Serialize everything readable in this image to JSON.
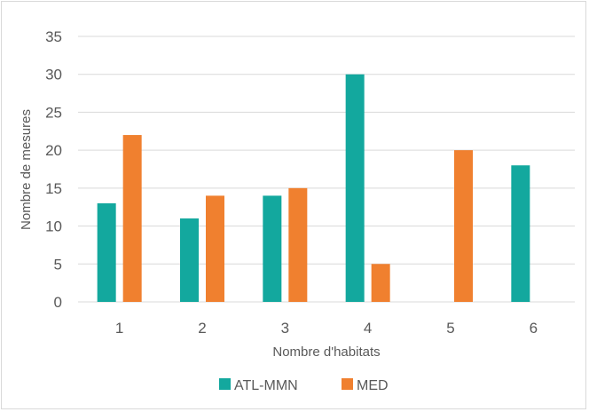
{
  "chart_data": {
    "type": "bar",
    "title": "",
    "xlabel": "Nombre d'habitats",
    "ylabel": "Nombre de mesures",
    "categories": [
      "1",
      "2",
      "3",
      "4",
      "5",
      "6"
    ],
    "ylim": [
      0,
      35
    ],
    "yticks": [
      "0",
      "5",
      "10",
      "15",
      "20",
      "25",
      "30",
      "35"
    ],
    "grid": true,
    "legend_position": "bottom",
    "series": [
      {
        "name": "ATL-MMN",
        "color": "#13a89e",
        "values": [
          13,
          11,
          14,
          30,
          0,
          18
        ]
      },
      {
        "name": "MED",
        "color": "#f0802f",
        "values": [
          22,
          14,
          15,
          5,
          20,
          0
        ]
      }
    ]
  }
}
